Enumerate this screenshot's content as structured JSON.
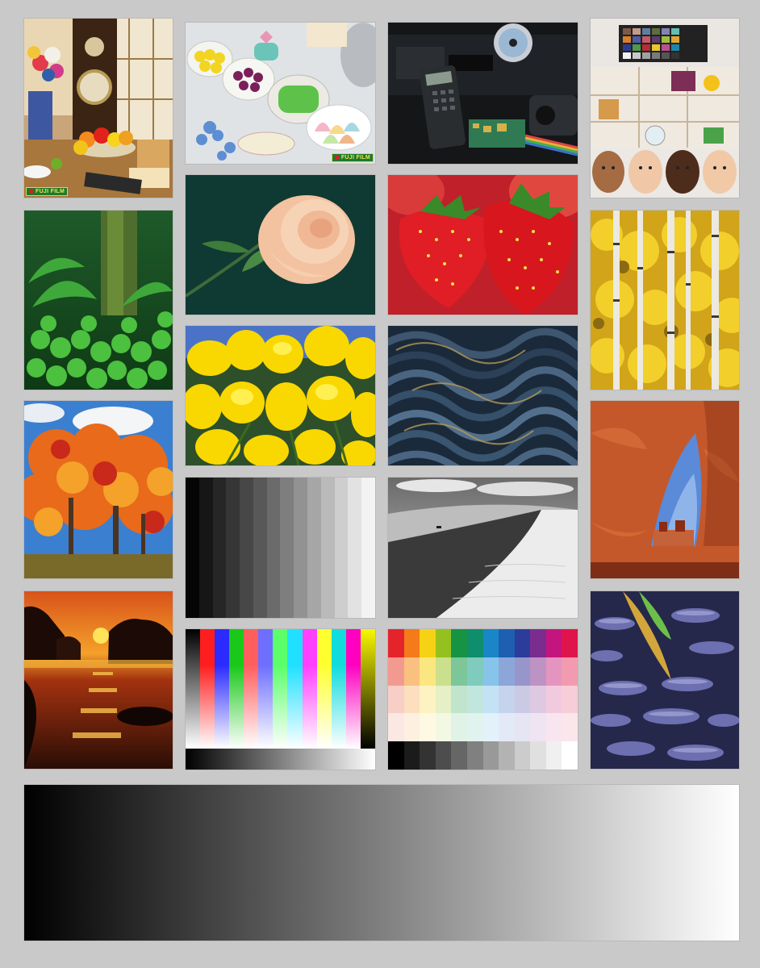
{
  "brand": {
    "logo_text": "FUJI FILM",
    "colors": {
      "green": "#1d7a2e",
      "yellow": "#f2e14a",
      "red": "#d21f2a"
    }
  },
  "tiles": [
    {
      "name": "still-life-clock-fruit"
    },
    {
      "name": "soaps-and-bath-items"
    },
    {
      "name": "electronics-calculator-camcorder"
    },
    {
      "name": "color-chart-and-baby-faces"
    },
    {
      "name": "fern-forest"
    },
    {
      "name": "peach-rose"
    },
    {
      "name": "strawberries"
    },
    {
      "name": "aspen-birch-trees"
    },
    {
      "name": "yellow-flowers"
    },
    {
      "name": "lava-texture"
    },
    {
      "name": "autumn-trees"
    },
    {
      "name": "gray-step-scale"
    },
    {
      "name": "sand-dune-bw"
    },
    {
      "name": "red-rock-arch"
    },
    {
      "name": "sunset-beach"
    },
    {
      "name": "color-bars"
    },
    {
      "name": "color-patch-grid"
    },
    {
      "name": "mudflat-reflection"
    },
    {
      "name": "gray-gradient-bar"
    }
  ],
  "gray_steps": [
    "#050505",
    "#161616",
    "#262626",
    "#363636",
    "#474747",
    "#585858",
    "#6b6b6b",
    "#7e7e7e",
    "#929292",
    "#a6a6a6",
    "#bababa",
    "#cecece",
    "#e2e2e2",
    "#f3f3f3"
  ],
  "color_bars": [
    "#ff1e1e",
    "#2b2bff",
    "#19c819",
    "#ff5e5e",
    "#6e6eff",
    "#5aff6a",
    "#20e0ff",
    "#ff40ff",
    "#ffff30",
    "#10dcdc",
    "#ff00c0",
    "#f8f800"
  ],
  "patch_grid": [
    [
      "#e5232a",
      "#f47a1a",
      "#f5d214",
      "#95c11f",
      "#179344",
      "#0f8e6d",
      "#1a86c7",
      "#1e5fb2",
      "#2b3c9b",
      "#7b2d8f",
      "#c4157f",
      "#e0144d"
    ],
    [
      "#f39a90",
      "#f9c080",
      "#fbe780",
      "#cbe08c",
      "#7cc69a",
      "#7fcbbd",
      "#87c4ea",
      "#8ca6da",
      "#9796cb",
      "#bd93c5",
      "#e495bf",
      "#f29bb0"
    ],
    [
      "#f7cfc6",
      "#fbdfbe",
      "#fdf3c2",
      "#e6f0c6",
      "#c1e4cd",
      "#c0e6dd",
      "#c3e2f4",
      "#c6d3ec",
      "#cacae5",
      "#dec9e2",
      "#f2cadf",
      "#f7cdd7"
    ],
    [
      "#fbe8e3",
      "#fdf0e0",
      "#fef9e2",
      "#f3f8e3",
      "#e1f2e6",
      "#e0f3ee",
      "#e2f1fa",
      "#e3e9f6",
      "#e5e5f3",
      "#efe4f1",
      "#f9e5ef",
      "#fbe6eb"
    ],
    [
      "#000000",
      "#1b1b1b",
      "#333333",
      "#4d4d4d",
      "#666666",
      "#808080",
      "#999999",
      "#b3b3b3",
      "#cccccc",
      "#e0e0e0",
      "#f0f0f0",
      "#ffffff"
    ]
  ]
}
